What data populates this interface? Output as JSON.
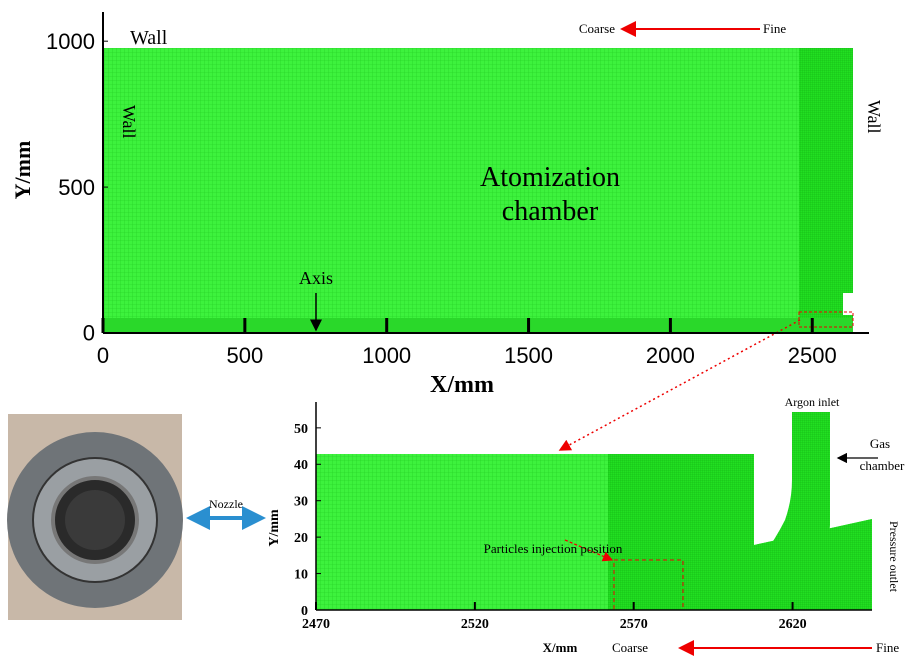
{
  "chart_data": [
    {
      "type": "mesh",
      "xlabel": "X/mm",
      "ylabel": "Y/mm",
      "xlim": [
        0,
        2700
      ],
      "ylim": [
        0,
        1100
      ],
      "xticks": [
        0,
        500,
        1000,
        1500,
        2000,
        2500
      ],
      "yticks": [
        0,
        500,
        1000
      ],
      "wall_labels": [
        "Wall",
        "Wall",
        "Wall"
      ],
      "region_label": [
        "Atomization",
        "chamber"
      ],
      "axis_label": "Axis",
      "coarse_label": "Coarse",
      "fine_label": "Fine"
    },
    {
      "type": "mesh",
      "xlabel": "X/mm",
      "ylabel": "Y/mm",
      "xlim": [
        2470,
        2645
      ],
      "ylim": [
        0,
        56
      ],
      "xticks": [
        2470,
        2520,
        2570,
        2620
      ],
      "yticks": [
        0,
        10,
        20,
        30,
        40,
        50
      ],
      "inlet_label": "Argon inlet",
      "chamber_label": [
        "Gas",
        "chamber"
      ],
      "injection_label": "Particles injection position",
      "outlet_label": "Pressure outlet",
      "coarse_label": "Coarse",
      "fine_label": "Fine"
    }
  ],
  "nozzle_label": "Nozzle"
}
